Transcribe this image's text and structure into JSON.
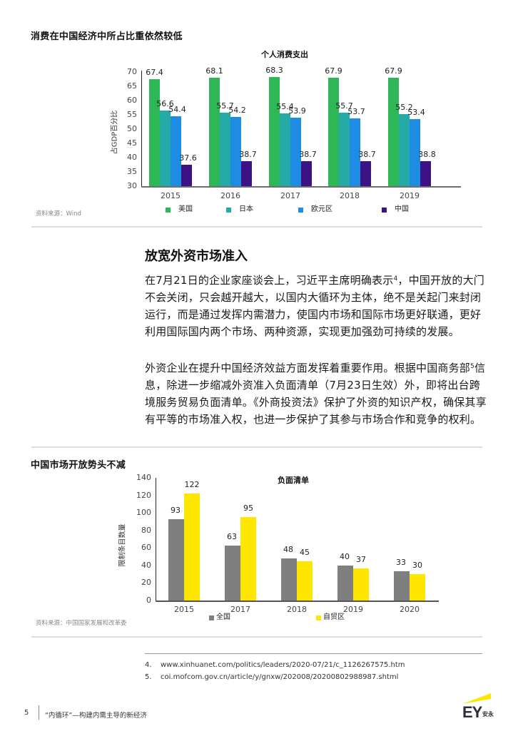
{
  "section1": {
    "title": "消费在中国经济中所占比重依然较低",
    "source": "资料来源：Wind"
  },
  "section2": {
    "heading": "放宽外资市场准入",
    "paragraph1_before_sup": "在7月21日的企业家座谈会上，习近平主席明确表示",
    "paragraph1_sup": "4",
    "paragraph1_after_sup": "，中国开放的大门不会关闭，只会越开越大，以国内大循环为主体，绝不是关起门来封闭运行，而是通过发挥内需潜力，使国内市场和国际市场更好联通，更好利用国际国内两个市场、两种资源，实现更加强劲可持续的发展。",
    "paragraph2_before_sup": "外资企业在提升中国经济效益方面发挥着重要作用。根据中国商务部",
    "paragraph2_sup": "5",
    "paragraph2_after_sup": "信息，除进一步缩减外资准入负面清单（7月23日生效）外，即将出台跨境服务贸易负面清单。《外商投资法》保护了外资的知识产权，确保其享有平等的市场准入权，也进一步保护了其参与市场合作和竞争的权利。"
  },
  "section3": {
    "title": "中国市场开放势头不减",
    "source": "资料来源：中国国家发展和改革委"
  },
  "footnotes": [
    {
      "num": "4.",
      "text": "www.xinhuanet.com/politics/leaders/2020-07/21/c_1126267575.htm"
    },
    {
      "num": "5.",
      "text": "coi.mofcom.gov.cn/article/y/gnxw/202008/20200802988987.shtml"
    }
  ],
  "footer": {
    "page_number": "5",
    "doc_title": "“内循环”—构建内需主导的新经济",
    "logo_text": "EY",
    "logo_sub": "安永"
  },
  "chart_data": [
    {
      "type": "bar",
      "title": "个人消费支出",
      "xlabel": "",
      "ylabel": "占GDP百分比",
      "ylim": [
        30,
        70
      ],
      "yticks": [
        70,
        65,
        60,
        55,
        50,
        45,
        40,
        35,
        30
      ],
      "categories": [
        "2015",
        "2016",
        "2017",
        "2018",
        "2019"
      ],
      "series": [
        {
          "name": "美国",
          "color": "#2db757",
          "values": [
            67.4,
            68.1,
            68.3,
            67.9,
            67.9
          ]
        },
        {
          "name": "日本",
          "color": "#26aaa8",
          "values": [
            56.6,
            55.7,
            55.4,
            55.7,
            55.2
          ]
        },
        {
          "name": "欧元区",
          "color": "#1f8ce3",
          "values": [
            54.4,
            54.2,
            53.9,
            53.7,
            53.4
          ]
        },
        {
          "name": "中国",
          "color": "#3c1284",
          "values": [
            37.6,
            38.7,
            38.7,
            38.7,
            38.8
          ]
        }
      ],
      "legend_position": "bottom",
      "grid": false
    },
    {
      "type": "bar",
      "title": "负面清单",
      "xlabel": "",
      "ylabel": "限制条目数量",
      "ylim": [
        0,
        140
      ],
      "yticks": [
        140,
        120,
        100,
        80,
        60,
        40,
        20,
        0
      ],
      "categories": [
        "2015",
        "2017",
        "2018",
        "2019",
        "2020"
      ],
      "series": [
        {
          "name": "全国",
          "color": "#7f7f7f",
          "values": [
            93,
            63,
            48,
            40,
            33
          ]
        },
        {
          "name": "自贸区",
          "color": "#ffe600",
          "values": [
            122,
            95,
            45,
            37,
            30
          ]
        }
      ],
      "legend_position": "bottom",
      "grid": false
    }
  ]
}
